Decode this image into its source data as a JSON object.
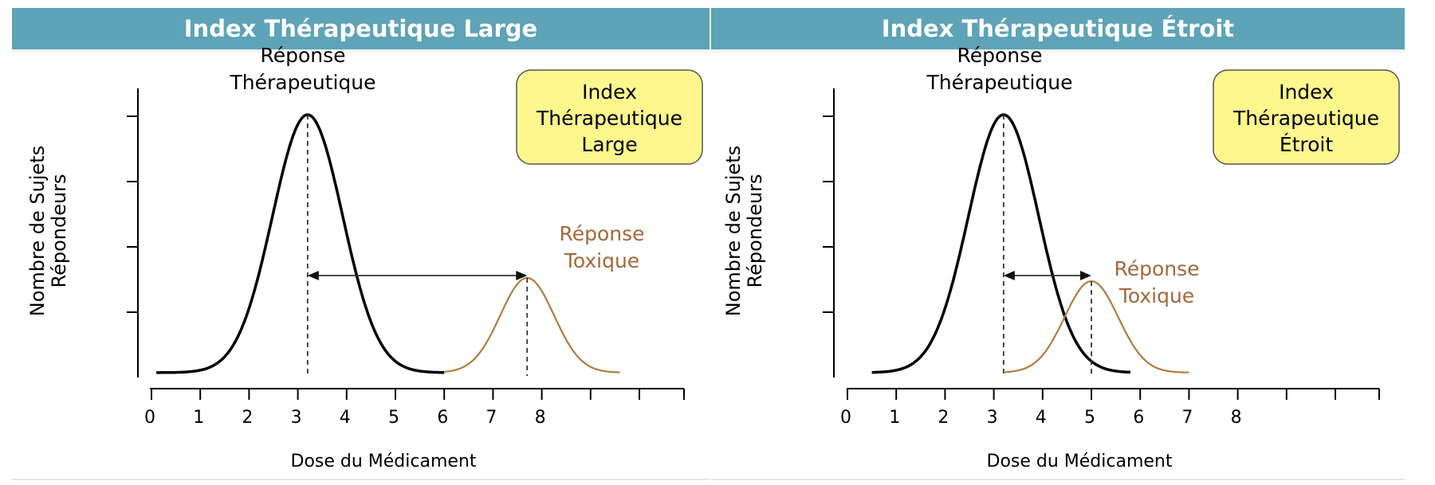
{
  "colors": {
    "banner": "#5ea3b7",
    "therapeutic_curve": "#000000",
    "toxic_curve": "#b07d3c",
    "toxic_label": "#a5673a",
    "box_fill": "#fdf78e",
    "box_border": "#555555"
  },
  "chart_data": [
    {
      "type": "line",
      "title": "Index Thérapeutique Large",
      "xlabel": "Dose du Médicament",
      "ylabel": [
        "Nombre de Sujets",
        "Répondeurs"
      ],
      "xticks": [
        "0",
        "1",
        "2",
        "3",
        "4",
        "5",
        "6",
        "7",
        "8"
      ],
      "xlim": [
        0,
        10.5
      ],
      "ylim": [
        0,
        4
      ],
      "box_label": [
        "Index",
        "Thérapeutique",
        "Large"
      ],
      "series": [
        {
          "name": "Réponse Thérapeutique",
          "label_lines": [
            "Réponse",
            "Thérapeutique"
          ],
          "peak_x": 3.2,
          "peak_y": 4.0,
          "sigma": 0.72,
          "x_range": [
            0.1,
            6.0
          ],
          "baseline": 0.05
        },
        {
          "name": "Réponse Toxique",
          "label_lines": [
            "Réponse",
            "Toxique"
          ],
          "peak_x": 7.7,
          "peak_y": 1.5,
          "sigma": 0.55,
          "x_range": [
            6.0,
            9.6
          ],
          "baseline": 0.05
        }
      ],
      "arrow": {
        "from_x": 3.2,
        "to_x": 7.7,
        "y": 1.5
      }
    },
    {
      "type": "line",
      "title": "Index Thérapeutique Étroit",
      "xlabel": "Dose du Médicament",
      "ylabel": [
        "Nombre de Sujets",
        "Répondeurs"
      ],
      "xticks": [
        "0",
        "1",
        "2",
        "3",
        "4",
        "5",
        "6",
        "7",
        "8"
      ],
      "xlim": [
        0,
        10.5
      ],
      "ylim": [
        0,
        4
      ],
      "box_label": [
        "Index",
        "Thérapeutique",
        "Étroit"
      ],
      "series": [
        {
          "name": "Réponse Thérapeutique",
          "label_lines": [
            "Réponse",
            "Thérapeutique"
          ],
          "peak_x": 3.2,
          "peak_y": 4.0,
          "sigma": 0.72,
          "x_range": [
            0.5,
            5.8
          ],
          "baseline": 0.05
        },
        {
          "name": "Réponse Toxique",
          "label_lines": [
            "Réponse",
            "Toxique"
          ],
          "peak_x": 5.0,
          "peak_y": 1.45,
          "sigma": 0.55,
          "x_range": [
            3.2,
            7.0
          ],
          "baseline": 0.05
        }
      ],
      "arrow": {
        "from_x": 3.2,
        "to_x": 5.0,
        "y": 1.5
      }
    }
  ]
}
